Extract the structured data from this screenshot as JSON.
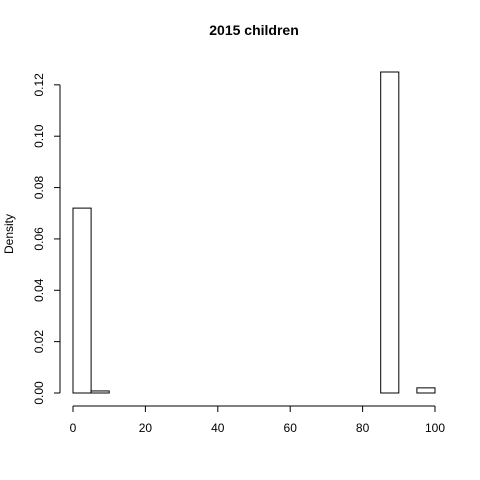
{
  "chart_data": {
    "type": "bar",
    "title": "2015 children",
    "xlabel": "",
    "ylabel": "Density",
    "xlim": [
      0,
      100
    ],
    "ylim": [
      0,
      0.125
    ],
    "grid": false,
    "bins": [
      {
        "x0": 0,
        "x1": 5,
        "value": 0.072
      },
      {
        "x0": 5,
        "x1": 10,
        "value": 0.0008
      },
      {
        "x0": 10,
        "x1": 15,
        "value": 0.0
      },
      {
        "x0": 15,
        "x1": 20,
        "value": 0.0
      },
      {
        "x0": 20,
        "x1": 25,
        "value": 0.0
      },
      {
        "x0": 25,
        "x1": 30,
        "value": 0.0
      },
      {
        "x0": 30,
        "x1": 35,
        "value": 0.0
      },
      {
        "x0": 35,
        "x1": 40,
        "value": 0.0
      },
      {
        "x0": 40,
        "x1": 45,
        "value": 0.0
      },
      {
        "x0": 45,
        "x1": 50,
        "value": 0.0
      },
      {
        "x0": 50,
        "x1": 55,
        "value": 0.0
      },
      {
        "x0": 55,
        "x1": 60,
        "value": 0.0
      },
      {
        "x0": 60,
        "x1": 65,
        "value": 0.0
      },
      {
        "x0": 65,
        "x1": 70,
        "value": 0.0
      },
      {
        "x0": 70,
        "x1": 75,
        "value": 0.0
      },
      {
        "x0": 75,
        "x1": 80,
        "value": 0.0
      },
      {
        "x0": 80,
        "x1": 85,
        "value": 0.0
      },
      {
        "x0": 85,
        "x1": 90,
        "value": 0.125
      },
      {
        "x0": 90,
        "x1": 95,
        "value": 0.0
      },
      {
        "x0": 95,
        "x1": 100,
        "value": 0.002
      }
    ],
    "x_ticks": [
      0,
      20,
      40,
      60,
      80,
      100
    ],
    "x_tick_labels": [
      "0",
      "20",
      "40",
      "60",
      "80",
      "100"
    ],
    "y_ticks": [
      0,
      0.02,
      0.04,
      0.06,
      0.08,
      0.1,
      0.12
    ],
    "y_tick_labels": [
      "0.00",
      "0.02",
      "0.04",
      "0.06",
      "0.08",
      "0.10",
      "0.12"
    ]
  }
}
